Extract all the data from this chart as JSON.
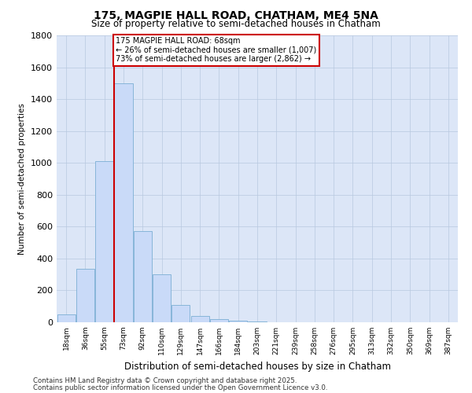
{
  "title1": "175, MAGPIE HALL ROAD, CHATHAM, ME4 5NA",
  "title2": "Size of property relative to semi-detached houses in Chatham",
  "xlabel": "Distribution of semi-detached houses by size in Chatham",
  "ylabel": "Number of semi-detached properties",
  "bar_color": "#c9daf8",
  "bar_edge_color": "#7bafd4",
  "red_line_color": "#cc0000",
  "background_color": "#dce6f7",
  "plot_bg_color": "#dce6f7",
  "grid_color": "#b8c8e0",
  "categories": [
    "18sqm",
    "36sqm",
    "55sqm",
    "73sqm",
    "92sqm",
    "110sqm",
    "129sqm",
    "147sqm",
    "166sqm",
    "184sqm",
    "203sqm",
    "221sqm",
    "239sqm",
    "258sqm",
    "276sqm",
    "295sqm",
    "313sqm",
    "332sqm",
    "350sqm",
    "369sqm",
    "387sqm"
  ],
  "values": [
    50,
    335,
    1010,
    1500,
    570,
    300,
    110,
    40,
    18,
    8,
    4,
    2,
    1,
    0,
    0,
    0,
    0,
    0,
    0,
    0,
    0
  ],
  "red_line_x": 2.5,
  "annotation_title": "175 MAGPIE HALL ROAD: 68sqm",
  "annotation_line2": "← 26% of semi-detached houses are smaller (1,007)",
  "annotation_line3": "73% of semi-detached houses are larger (2,862) →",
  "ylim": [
    0,
    1800
  ],
  "yticks": [
    0,
    200,
    400,
    600,
    800,
    1000,
    1200,
    1400,
    1600,
    1800
  ],
  "footer1": "Contains HM Land Registry data © Crown copyright and database right 2025.",
  "footer2": "Contains public sector information licensed under the Open Government Licence v3.0."
}
